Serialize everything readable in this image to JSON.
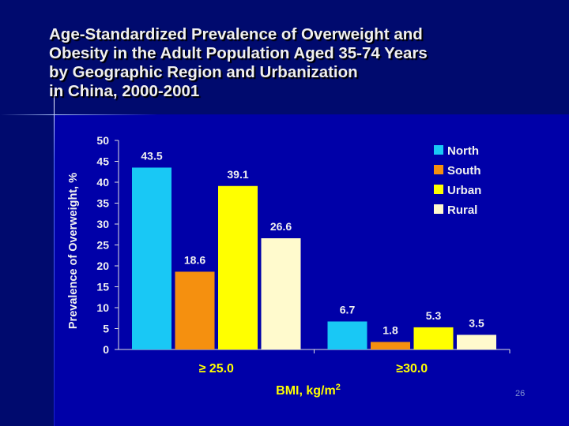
{
  "slide": {
    "title_lines": [
      "Age-Standardized Prevalence of Overweight and",
      "Obesity in the Adult Population Aged 35-74 Years",
      "by Geographic Region and Urbanization",
      "in China, 2000-2001"
    ],
    "page_number": "26"
  },
  "chart_data": {
    "type": "bar",
    "title": "Age-Standardized Prevalence of Overweight and Obesity in the Adult Population Aged 35-74 Years by Geographic Region and Urbanization in China, 2000-2001",
    "categories": [
      "≥ 25.0",
      "≥30.0"
    ],
    "series": [
      {
        "name": "North",
        "color": "#19c8f5",
        "values": [
          43.5,
          6.7
        ]
      },
      {
        "name": "South",
        "color": "#f5900f",
        "values": [
          18.6,
          1.8
        ]
      },
      {
        "name": "Urban",
        "color": "#ffff00",
        "values": [
          39.1,
          5.3
        ]
      },
      {
        "name": "Rural",
        "color": "#fffacd",
        "values": [
          26.6,
          3.5
        ]
      }
    ],
    "xlabel": "BMI, kg/m",
    "xlabel_sup": "2",
    "ylabel": "Prevalence of Overweight, %",
    "ylim": [
      0,
      50
    ],
    "yticks": [
      "0",
      "5",
      "10",
      "15",
      "20",
      "25",
      "30",
      "35",
      "40",
      "45",
      "50"
    ],
    "legend": "top-right",
    "grid": false
  }
}
